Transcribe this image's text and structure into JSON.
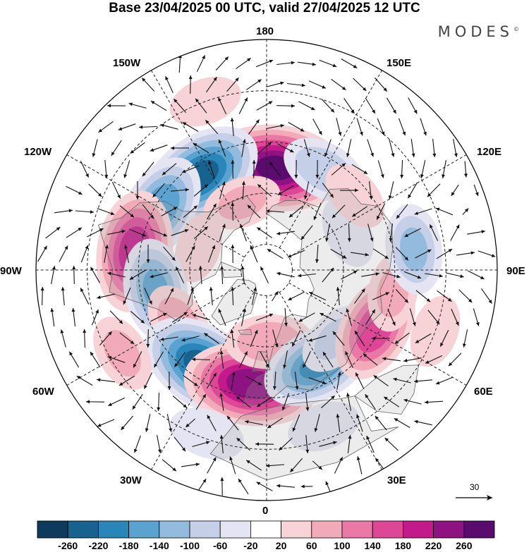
{
  "title": "Base 23/04/2025 00 UTC, valid 27/04/2025 12 UTC",
  "brand": "MODES",
  "brand_mark": "©",
  "longitude_labels": {
    "lon_180": "180",
    "lon_150w": "150W",
    "lon_150e": "150E",
    "lon_120w": "120W",
    "lon_120e": "120E",
    "lon_90w": "90W",
    "lon_90e": "90E",
    "lon_60w": "60W",
    "lon_60e": "60E",
    "lon_30w": "30W",
    "lon_30e": "30E",
    "lon_0": "0"
  },
  "wind_reference": {
    "label": "30"
  },
  "colorbar": {
    "levels": [
      "-260",
      "-220",
      "-180",
      "-140",
      "-100",
      "-60",
      "-20",
      "20",
      "60",
      "100",
      "140",
      "180",
      "220",
      "260"
    ],
    "colors": [
      "#0e3a5e",
      "#17628f",
      "#2a85b8",
      "#5aa2cf",
      "#93bbdd",
      "#c5d0e8",
      "#e4e4f2",
      "#ffffff",
      "#f7d2d6",
      "#f2aab8",
      "#ea78a6",
      "#dd4796",
      "#c21a8a",
      "#8e1282",
      "#5a0c6e"
    ]
  },
  "anomaly_centers": [
    {
      "lon": 175,
      "lat": 50,
      "value": 270
    },
    {
      "lon": -145,
      "lat": 45,
      "value": -230
    },
    {
      "lon": 150,
      "lat": 45,
      "value": -90
    },
    {
      "lon": -160,
      "lat": 62,
      "value": 60
    },
    {
      "lon": -120,
      "lat": 42,
      "value": -170
    },
    {
      "lon": -98,
      "lat": 38,
      "value": 210
    },
    {
      "lon": -108,
      "lat": 62,
      "value": 30
    },
    {
      "lon": -80,
      "lat": 46,
      "value": -140
    },
    {
      "lon": -58,
      "lat": 50,
      "value": 80
    },
    {
      "lon": -33,
      "lat": 45,
      "value": -240
    },
    {
      "lon": -8,
      "lat": 45,
      "value": 250
    },
    {
      "lon": 2,
      "lat": 62,
      "value": 90
    },
    {
      "lon": 28,
      "lat": 48,
      "value": -180
    },
    {
      "lon": 45,
      "lat": 52,
      "value": -60
    },
    {
      "lon": 62,
      "lat": 42,
      "value": 170
    },
    {
      "lon": 80,
      "lat": 40,
      "value": 60
    },
    {
      "lon": 98,
      "lat": 32,
      "value": -100
    },
    {
      "lon": 115,
      "lat": 55,
      "value": -40
    },
    {
      "lon": 130,
      "lat": 45,
      "value": 40
    },
    {
      "lon": -160,
      "lat": 20,
      "value": 40
    },
    {
      "lon": -60,
      "lat": 25,
      "value": 60
    },
    {
      "lon": -20,
      "lat": 22,
      "value": -50
    },
    {
      "lon": 20,
      "lat": 25,
      "value": -40
    },
    {
      "lon": 70,
      "lat": 20,
      "value": 40
    }
  ]
}
